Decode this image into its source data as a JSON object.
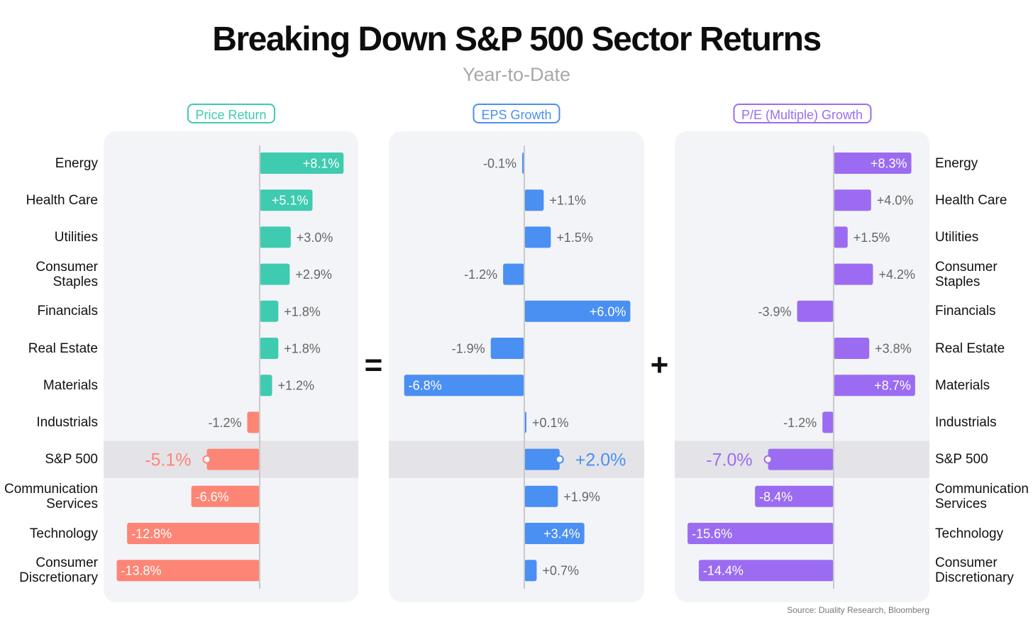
{
  "title": "Breaking Down S&P 500 Sector Returns",
  "subtitle": "Year-to-Date",
  "source": "Source: Duality Research, Bloomberg",
  "operators": {
    "equals": "=",
    "plus": "+"
  },
  "colors": {
    "price_positive": "#3ecbb0",
    "price_negative": "#fd8575",
    "eps": "#4a8ff2",
    "pe": "#9b6cf2",
    "panel_bg": "#f3f4f8",
    "highlight_bg": "#e4e4e8",
    "axis": "#c9c9cc",
    "value_text": "#666666"
  },
  "chart_data": {
    "type": "bar",
    "orientation": "horizontal",
    "categories": [
      [
        "Energy"
      ],
      [
        "Health Care"
      ],
      [
        "Utilities"
      ],
      [
        "Consumer",
        "Staples"
      ],
      [
        "Financials"
      ],
      [
        "Real Estate"
      ],
      [
        "Materials"
      ],
      [
        "Industrials"
      ],
      [
        "S&P 500"
      ],
      [
        "Communication",
        "Services"
      ],
      [
        "Technology"
      ],
      [
        "Consumer",
        "Discretionary"
      ]
    ],
    "highlight_category": "S&P 500",
    "series": [
      {
        "name": "Price Return",
        "values": [
          8.1,
          5.1,
          3.0,
          2.9,
          1.8,
          1.8,
          1.2,
          -1.2,
          -5.1,
          -6.6,
          -12.8,
          -13.8
        ],
        "labels": [
          "+8.1%",
          "+5.1%",
          "+3.0%",
          "+2.9%",
          "+1.8%",
          "+1.8%",
          "+1.2%",
          "-1.2%",
          "-5.1%",
          "-6.6%",
          "-12.8%",
          "-13.8%"
        ]
      },
      {
        "name": "EPS Growth",
        "values": [
          -0.1,
          1.1,
          1.5,
          -1.2,
          6.0,
          -1.9,
          -6.8,
          0.1,
          2.0,
          1.9,
          3.4,
          0.7
        ],
        "labels": [
          "-0.1%",
          "+1.1%",
          "+1.5%",
          "-1.2%",
          "+6.0%",
          "-1.9%",
          "-6.8%",
          "+0.1%",
          "+2.0%",
          "+1.9%",
          "+3.4%",
          "+0.7%"
        ]
      },
      {
        "name": "P/E (Multiple) Growth",
        "values": [
          8.3,
          4.0,
          1.5,
          4.2,
          -3.9,
          3.8,
          8.7,
          -1.2,
          -7.0,
          -8.4,
          -15.6,
          -14.4
        ],
        "labels": [
          "+8.3%",
          "+4.0%",
          "+1.5%",
          "+4.2%",
          "-3.9%",
          "+3.8%",
          "+8.7%",
          "-1.2%",
          "-7.0%",
          "-8.4%",
          "-15.6%",
          "-14.4%"
        ]
      }
    ]
  }
}
